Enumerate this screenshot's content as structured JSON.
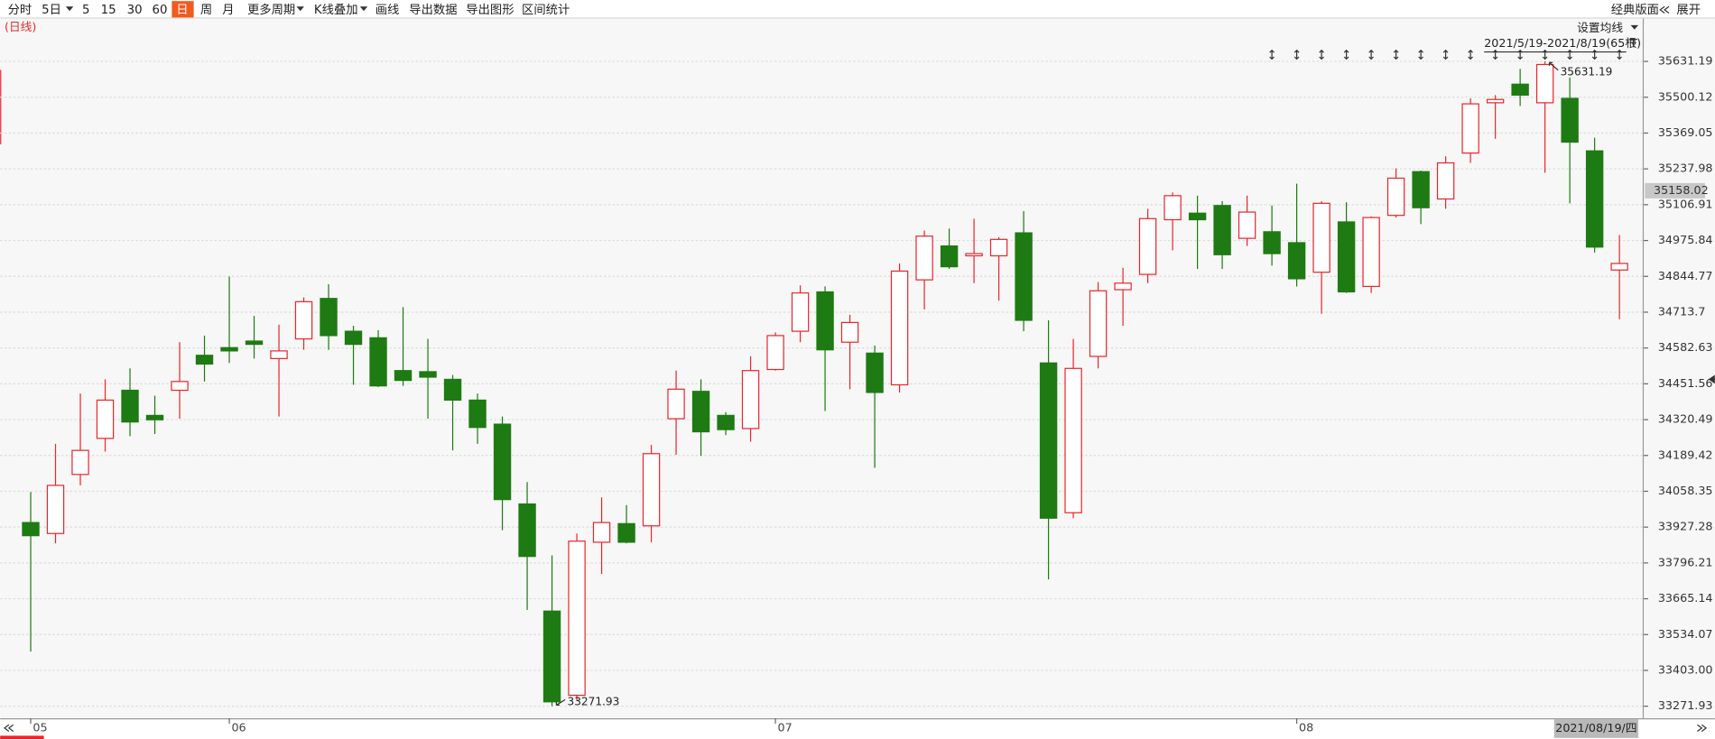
{
  "toolbar": {
    "items": [
      "分时",
      "5日",
      "5",
      "15",
      "30",
      "60",
      "日",
      "周",
      "月",
      "更多周期",
      "K线叠加",
      "画线",
      "导出数据",
      "导出图形",
      "区间统计"
    ],
    "right_items": [
      "经典版面",
      "展开"
    ]
  },
  "period_label": "(日线)",
  "ma_settings": "设置均线",
  "range_label": "2021/5/19-2021/8/19(65根)",
  "last_date_label": "2021/08/19/四",
  "chart_data": {
    "type": "candlestick",
    "categories": [
      "05",
      null,
      null,
      null,
      null,
      null,
      null,
      null,
      "06",
      null,
      null,
      null,
      null,
      null,
      null,
      null,
      null,
      null,
      null,
      null,
      null,
      null,
      null,
      null,
      null,
      null,
      null,
      null,
      null,
      null,
      "07",
      null,
      null,
      null,
      null,
      null,
      null,
      null,
      null,
      null,
      null,
      null,
      null,
      null,
      null,
      null,
      null,
      null,
      null,
      null,
      null,
      "08",
      null,
      null,
      null,
      null,
      null,
      null,
      null,
      null,
      null,
      null,
      null,
      null,
      null
    ],
    "open": [
      33943.93,
      33903.93,
      34119.93,
      34251.93,
      34427.93,
      34335.93,
      34427.93,
      34555.93,
      34583.93,
      34607.93,
      34543.93,
      34615.93,
      34763.93,
      34643.93,
      34619.93,
      34499.93,
      34495.93,
      34467.93,
      34391.93,
      34303.93,
      34011.93,
      33619.93,
      33311.93,
      33871.93,
      33939.93,
      33931.93,
      34323.93,
      34423.93,
      34335.93,
      34287.93,
      34503.93,
      34643.93,
      34787.93,
      34603.93,
      34563.93,
      34447.93,
      34831.93,
      34955.93,
      34919.93,
      34919.93,
      35003.93,
      34527.93,
      33979.93,
      34551.93,
      34795.93,
      34851.93,
      35051.93,
      35075.93,
      35103.93,
      34983.93,
      35007.93,
      34967.93,
      34859.93,
      35043.93,
      34807.93,
      35067.93,
      35227.93,
      35127.93,
      35295.93,
      35479.93,
      35547.93,
      35479.93,
      35495.93,
      35303.93,
      34867.93
    ],
    "high": [
      34055.93,
      34231.93,
      34415.93,
      34467.93,
      34507.93,
      34407.93,
      34603.93,
      34627.93,
      34843.93,
      34699.93,
      34667.93,
      34767.93,
      34815.93,
      34663.93,
      34647.93,
      34731.93,
      34615.93,
      34483.93,
      34415.93,
      34331.93,
      34091.93,
      33823.93,
      33903.93,
      34035.93,
      34007.93,
      34227.93,
      34499.93,
      34467.93,
      34347.93,
      34551.93,
      34639.93,
      34811.93,
      34807.93,
      34703.93,
      34591.93,
      34891.93,
      35011.93,
      35019.93,
      35055.93,
      34987.93,
      35083.93,
      34683.93,
      34615.93,
      34823.93,
      34875.93,
      35091.93,
      35151.93,
      35139.93,
      35119.93,
      35139.93,
      35103.93,
      35183.93,
      35119.93,
      35115.93,
      35063.93,
      35239.93,
      35231.93,
      35283.93,
      35495.93,
      35507.93,
      35603.93,
      35631.19,
      35571.93,
      35351.93,
      34995.93
    ],
    "low": [
      33471.93,
      33867.93,
      34079.93,
      34203.93,
      34259.93,
      34267.93,
      34323.93,
      34459.93,
      34527.93,
      34543.93,
      34331.93,
      34575.93,
      34575.93,
      34447.93,
      34439.93,
      34443.93,
      34323.93,
      34207.93,
      34231.93,
      33915.93,
      33623.93,
      33271.93,
      33291.93,
      33755.93,
      33867.93,
      33871.93,
      34191.93,
      34187.93,
      34263.93,
      34239.93,
      34499.93,
      34603.93,
      34351.93,
      34431.93,
      34143.93,
      34419.93,
      34723.93,
      34871.93,
      34819.93,
      34755.93,
      34643.93,
      33735.93,
      33959.93,
      34507.93,
      34663.93,
      34819.93,
      34939.93,
      34871.93,
      34871.93,
      34955.93,
      34883.93,
      34807.93,
      34707.93,
      34783.93,
      34783.93,
      35059.93,
      35035.93,
      35091.93,
      35259.93,
      35347.93,
      35467.93,
      35223.93,
      35111.93,
      34931.93,
      34687.93
    ],
    "close": [
      33895.93,
      34079.93,
      34207.93,
      34391.93,
      34311.93,
      34319.93,
      34459.93,
      34523.93,
      34571.93,
      34595.93,
      34571.93,
      34751.93,
      34627.93,
      34595.93,
      34443.93,
      34463.93,
      34475.93,
      34391.93,
      34291.93,
      34027.93,
      33819.93,
      33287.93,
      33875.93,
      33943.93,
      33871.93,
      34195.93,
      34431.93,
      34275.93,
      34283.93,
      34499.93,
      34627.93,
      34783.93,
      34575.93,
      34675.93,
      34419.93,
      34863.93,
      34991.93,
      34879.93,
      34927.93,
      34979.93,
      34683.93,
      33959.93,
      34507.93,
      34791.93,
      34819.93,
      35055.93,
      35139.93,
      35051.93,
      34923.93,
      35079.93,
      34927.93,
      34835.93,
      35111.93,
      34787.93,
      35059.93,
      35203.93,
      35095.93,
      35259.93,
      35475.93,
      35491.93,
      35507.93,
      35619.93,
      35335.93,
      34951.93,
      34891.93
    ],
    "up_color": "#e8262b",
    "down_color": "#1e7a12",
    "ylim": [
      33235.93,
      35787.93
    ],
    "yticks": [
      33271.93,
      {
        "value": 33403,
        "label": "33403.00"
      },
      33534.07,
      33665.14,
      33796.21,
      33927.28,
      34058.35,
      34189.42,
      34320.49,
      34451.56,
      34582.63,
      34713.7,
      34844.77,
      34975.84,
      35106.91,
      35237.98,
      35369.05,
      35500.12,
      35631.19
    ],
    "grid": true,
    "cursor_value": 35158.02
  }
}
